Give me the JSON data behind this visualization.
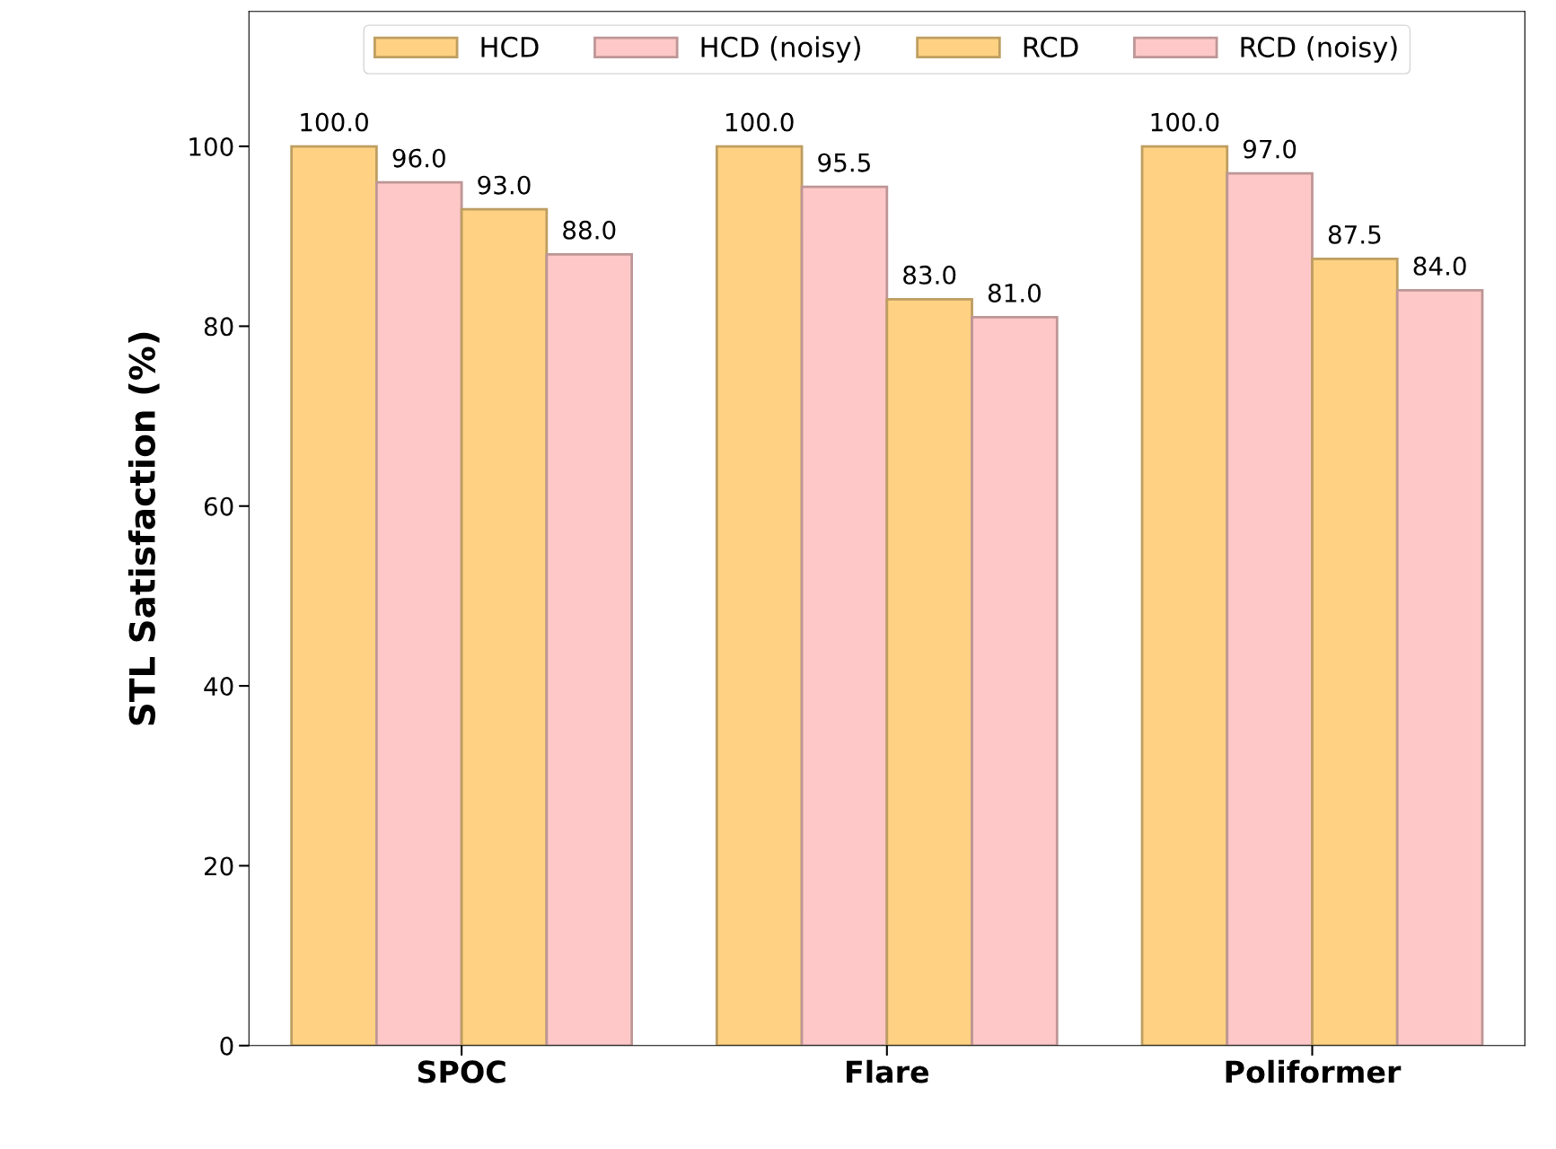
{
  "chart_data": {
    "type": "bar",
    "ylabel": "STL Satisfaction (%)",
    "categories": [
      "SPOC",
      "Flare",
      "Poliformer"
    ],
    "series": [
      {
        "name": "HCD",
        "color": "#fed282",
        "values": [
          100.0,
          100.0,
          100.0
        ],
        "value_labels": [
          "100.0",
          "100.0",
          "100.0"
        ]
      },
      {
        "name": "HCD (noisy)",
        "color": "#fec8c8",
        "values": [
          96.0,
          95.5,
          97.0
        ],
        "value_labels": [
          "96.0",
          "95.5",
          "97.0"
        ]
      },
      {
        "name": "RCD",
        "color": "#fed282",
        "values": [
          93.0,
          83.0,
          87.5
        ],
        "value_labels": [
          "93.0",
          "83.0",
          "87.5"
        ]
      },
      {
        "name": "RCD (noisy)",
        "color": "#fec8c8",
        "values": [
          88.0,
          81.0,
          84.0
        ],
        "value_labels": [
          "88.0",
          "81.0",
          "84.0"
        ]
      }
    ],
    "ylim": [
      0,
      115
    ],
    "yticks": [
      0,
      20,
      40,
      60,
      80,
      100
    ],
    "legend": "top",
    "grid": false
  }
}
